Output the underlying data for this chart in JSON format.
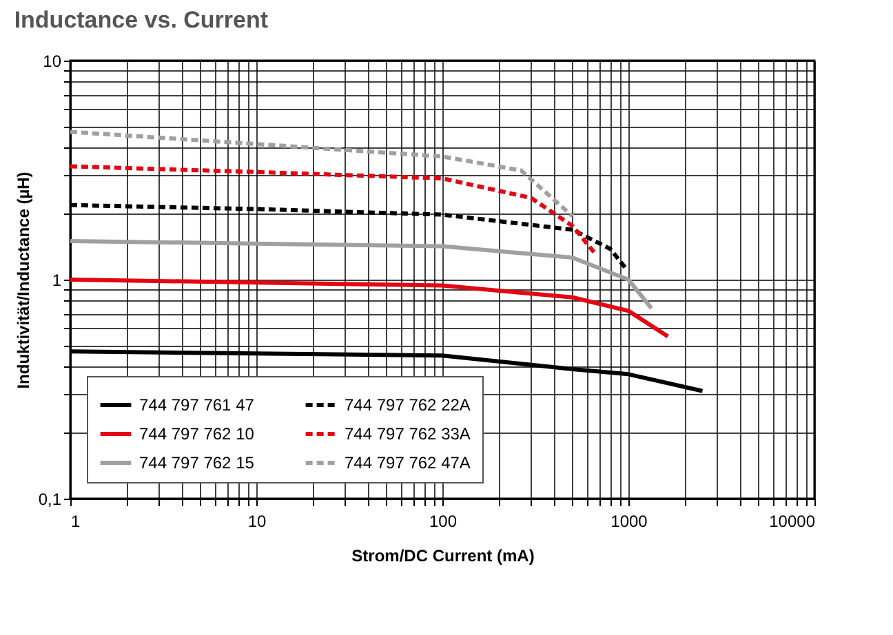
{
  "chart_data": {
    "type": "line",
    "title": "Inductance vs. Current",
    "xlabel": "Strom/DC Current (mA)",
    "ylabel": "Induktivität/Inductance (µH)",
    "log": "xy",
    "grid": true,
    "legend": "bottom left",
    "marker": "none",
    "xlim": [
      1,
      10000
    ],
    "ylim": [
      0.1,
      10
    ],
    "xticks": [
      1,
      {
        "value": 2,
        "label": null
      },
      {
        "value": 3,
        "label": null
      },
      {
        "value": 4,
        "label": null
      },
      {
        "value": 5,
        "label": null
      },
      {
        "value": 6,
        "label": null
      },
      {
        "value": 7,
        "label": null
      },
      {
        "value": 8,
        "label": null
      },
      {
        "value": 9,
        "label": null
      },
      10,
      {
        "value": 20,
        "label": null
      },
      {
        "value": 30,
        "label": null
      },
      {
        "value": 40,
        "label": null
      },
      {
        "value": 50,
        "label": null
      },
      {
        "value": 60,
        "label": null
      },
      {
        "value": 70,
        "label": null
      },
      {
        "value": 80,
        "label": null
      },
      {
        "value": 90,
        "label": null
      },
      100,
      {
        "value": 200,
        "label": null
      },
      {
        "value": 300,
        "label": null
      },
      {
        "value": 400,
        "label": null
      },
      {
        "value": 500,
        "label": null
      },
      {
        "value": 600,
        "label": null
      },
      {
        "value": 700,
        "label": null
      },
      {
        "value": 800,
        "label": null
      },
      {
        "value": 900,
        "label": null
      },
      1000,
      {
        "value": 2000,
        "label": null
      },
      {
        "value": 3000,
        "label": null
      },
      {
        "value": 4000,
        "label": null
      },
      {
        "value": 5000,
        "label": null
      },
      {
        "value": 6000,
        "label": null
      },
      {
        "value": 7000,
        "label": null
      },
      {
        "value": 8000,
        "label": null
      },
      {
        "value": 9000,
        "label": null
      },
      10000
    ],
    "yticks": [
      {
        "value": 0.1,
        "label": "0,1"
      },
      {
        "value": 0.2,
        "label": null
      },
      {
        "value": 0.3,
        "label": null
      },
      {
        "value": 0.4,
        "label": null
      },
      {
        "value": 0.5,
        "label": null
      },
      {
        "value": 0.6,
        "label": null
      },
      {
        "value": 0.7,
        "label": null
      },
      {
        "value": 0.8,
        "label": null
      },
      {
        "value": 0.9,
        "label": null
      },
      1,
      {
        "value": 2,
        "label": null
      },
      {
        "value": 3,
        "label": null
      },
      {
        "value": 4,
        "label": null
      },
      {
        "value": 5,
        "label": null
      },
      {
        "value": 6,
        "label": null
      },
      {
        "value": 7,
        "label": null
      },
      {
        "value": 8,
        "label": null
      },
      {
        "value": 9,
        "label": null
      },
      10
    ],
    "series": [
      {
        "name": "744 797 761 47",
        "color": "#000000",
        "line_style": "solid",
        "x": [
          1,
          10,
          100,
          500,
          1000,
          2500
        ],
        "values": [
          0.47,
          0.46,
          0.45,
          0.39,
          0.37,
          0.31
        ]
      },
      {
        "name": "744 797 762 10",
        "color": "#e30613",
        "line_style": "solid",
        "x": [
          1,
          10,
          100,
          500,
          1000,
          1630
        ],
        "values": [
          1.0,
          0.97,
          0.94,
          0.83,
          0.72,
          0.55
        ]
      },
      {
        "name": "744 797 762 15",
        "color": "#a0a0a0",
        "line_style": "solid",
        "x": [
          1,
          10,
          100,
          500,
          1000,
          1330
        ],
        "values": [
          1.5,
          1.46,
          1.42,
          1.26,
          1.0,
          0.74
        ]
      },
      {
        "name": "744 797 762 22A",
        "color": "#000000",
        "line_style": "dashed",
        "x": [
          1,
          10,
          100,
          500,
          800,
          990
        ],
        "values": [
          2.19,
          2.1,
          1.98,
          1.69,
          1.38,
          1.1
        ]
      },
      {
        "name": "744 797 762 33A",
        "color": "#e30613",
        "line_style": "dashed",
        "x": [
          1,
          10,
          100,
          300,
          500,
          660
        ],
        "values": [
          3.29,
          3.1,
          2.9,
          2.36,
          1.76,
          1.32
        ]
      },
      {
        "name": "744 797 762 47A",
        "color": "#a0a0a0",
        "line_style": "dashed",
        "x": [
          1,
          10,
          100,
          265,
          500
        ],
        "values": [
          4.73,
          4.16,
          3.65,
          3.15,
          1.95
        ]
      }
    ]
  }
}
